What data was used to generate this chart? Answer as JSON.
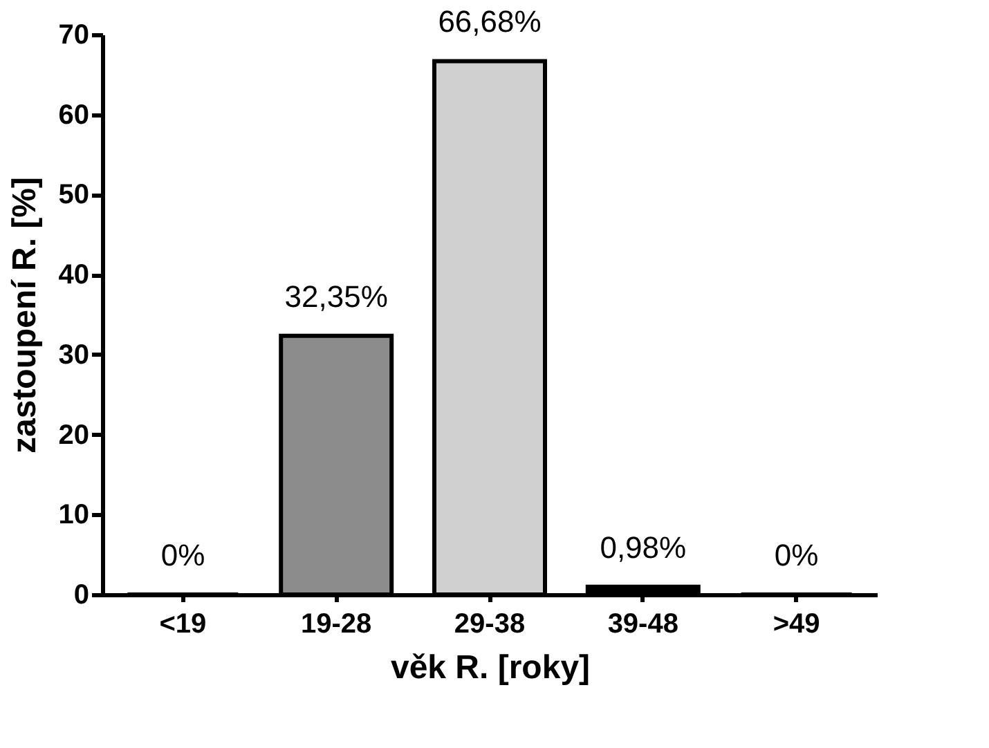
{
  "chart_data": {
    "type": "bar",
    "xlabel": "věk R. [roky]",
    "ylabel": "zastoupení R. [%]",
    "categories": [
      "<19",
      "19-28",
      "29-38",
      "39-48",
      ">49"
    ],
    "values": [
      0,
      32.35,
      66.68,
      0.98,
      0
    ],
    "colors": [
      "#ffffff",
      "#8c8c8c",
      "#d0d0d0",
      "#000000",
      "#ffffff"
    ],
    "value_labels": [
      "0%",
      "32,35%",
      "66,68%",
      "0,98%",
      "0%"
    ],
    "ylim": [
      0,
      70
    ],
    "yticks": [
      0,
      10,
      20,
      30,
      40,
      50,
      60,
      70
    ],
    "grid": false
  }
}
